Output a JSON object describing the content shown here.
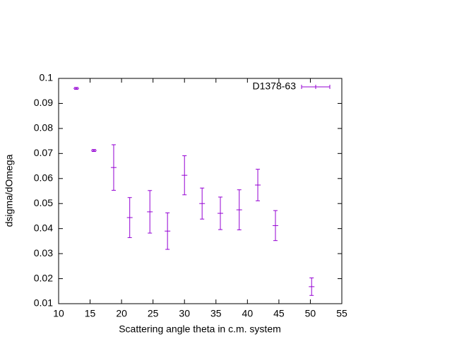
{
  "chart_data": {
    "type": "errorbar",
    "xlabel": "Scattering angle theta in c.m. system",
    "ylabel": "dsigma/dOmega",
    "x": [
      12.8,
      15.6,
      18.75,
      21.3,
      24.5,
      27.3,
      30.0,
      32.8,
      35.7,
      38.7,
      41.65,
      44.45,
      50.2
    ],
    "series": [
      {
        "name": "D1378-63",
        "color": "#9400d3",
        "values": [
          0.096,
          0.0712,
          0.0644,
          0.0444,
          0.0467,
          0.039,
          0.0613,
          0.05,
          0.0461,
          0.0475,
          0.0574,
          0.0412,
          0.0168
        ],
        "errors": [
          0.0004,
          0.0004,
          0.0091,
          0.008,
          0.0085,
          0.0073,
          0.0078,
          0.0062,
          0.0065,
          0.008,
          0.0063,
          0.006,
          0.0035
        ]
      }
    ],
    "xlim": [
      10,
      55
    ],
    "xticks": [
      10,
      15,
      20,
      25,
      30,
      35,
      40,
      45,
      50,
      55
    ],
    "ylim": [
      0.01,
      0.1
    ],
    "yticks": [
      0.01,
      0.02,
      0.03,
      0.04,
      0.05,
      0.06,
      0.07,
      0.08,
      0.09,
      0.1
    ],
    "legend": "top-right"
  }
}
